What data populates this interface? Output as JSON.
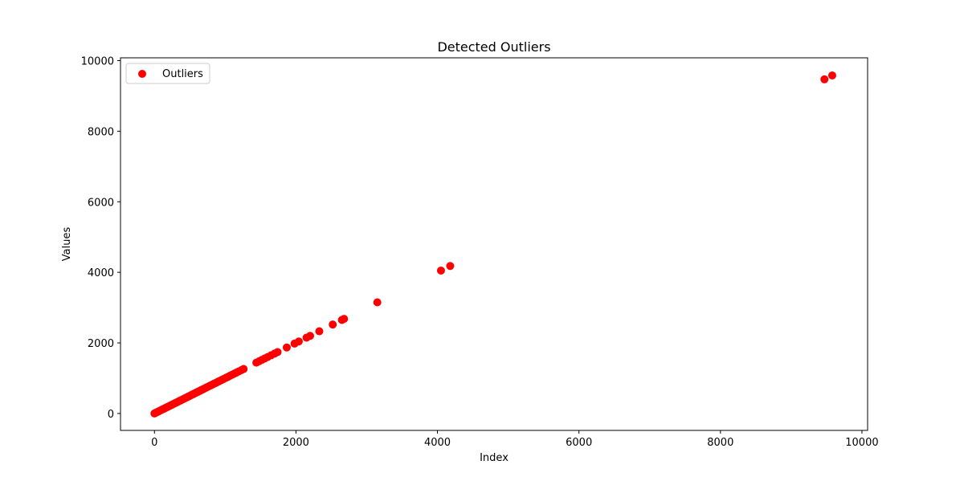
{
  "chart_data": {
    "type": "scatter",
    "title": "Detected Outliers",
    "xlabel": "Index",
    "ylabel": "Values",
    "xlim": [
      -480,
      10080
    ],
    "ylim": [
      -480,
      10080
    ],
    "xticks": [
      0,
      2000,
      4000,
      6000,
      8000,
      10000
    ],
    "yticks": [
      0,
      2000,
      4000,
      6000,
      8000,
      10000
    ],
    "grid": false,
    "legend_position": "top-left",
    "series": [
      {
        "name": "Outliers",
        "color": "#ff0000",
        "marker": "circle",
        "points": [
          [
            0,
            0
          ],
          [
            20,
            20
          ],
          [
            40,
            40
          ],
          [
            60,
            60
          ],
          [
            80,
            80
          ],
          [
            100,
            100
          ],
          [
            120,
            120
          ],
          [
            140,
            140
          ],
          [
            160,
            160
          ],
          [
            180,
            180
          ],
          [
            200,
            200
          ],
          [
            220,
            220
          ],
          [
            240,
            240
          ],
          [
            260,
            260
          ],
          [
            280,
            280
          ],
          [
            300,
            300
          ],
          [
            320,
            320
          ],
          [
            340,
            340
          ],
          [
            360,
            360
          ],
          [
            380,
            380
          ],
          [
            400,
            400
          ],
          [
            420,
            420
          ],
          [
            440,
            440
          ],
          [
            460,
            460
          ],
          [
            480,
            480
          ],
          [
            500,
            500
          ],
          [
            520,
            520
          ],
          [
            540,
            540
          ],
          [
            560,
            560
          ],
          [
            580,
            580
          ],
          [
            600,
            600
          ],
          [
            620,
            620
          ],
          [
            640,
            640
          ],
          [
            660,
            660
          ],
          [
            680,
            680
          ],
          [
            700,
            700
          ],
          [
            720,
            720
          ],
          [
            740,
            740
          ],
          [
            760,
            760
          ],
          [
            780,
            780
          ],
          [
            800,
            800
          ],
          [
            820,
            820
          ],
          [
            840,
            840
          ],
          [
            860,
            860
          ],
          [
            880,
            880
          ],
          [
            900,
            900
          ],
          [
            920,
            920
          ],
          [
            950,
            950
          ],
          [
            980,
            980
          ],
          [
            1010,
            1010
          ],
          [
            1040,
            1040
          ],
          [
            1070,
            1070
          ],
          [
            1100,
            1100
          ],
          [
            1130,
            1130
          ],
          [
            1160,
            1160
          ],
          [
            1190,
            1190
          ],
          [
            1230,
            1230
          ],
          [
            1260,
            1260
          ],
          [
            1440,
            1440
          ],
          [
            1480,
            1480
          ],
          [
            1520,
            1520
          ],
          [
            1560,
            1560
          ],
          [
            1600,
            1600
          ],
          [
            1650,
            1650
          ],
          [
            1700,
            1700
          ],
          [
            1740,
            1740
          ],
          [
            1870,
            1870
          ],
          [
            1980,
            1980
          ],
          [
            2040,
            2040
          ],
          [
            2150,
            2150
          ],
          [
            2200,
            2200
          ],
          [
            2330,
            2330
          ],
          [
            2520,
            2520
          ],
          [
            2650,
            2650
          ],
          [
            2680,
            2680
          ],
          [
            3150,
            3150
          ],
          [
            4050,
            4050
          ],
          [
            4180,
            4180
          ],
          [
            9470,
            9470
          ],
          [
            9580,
            9580
          ]
        ]
      }
    ]
  }
}
